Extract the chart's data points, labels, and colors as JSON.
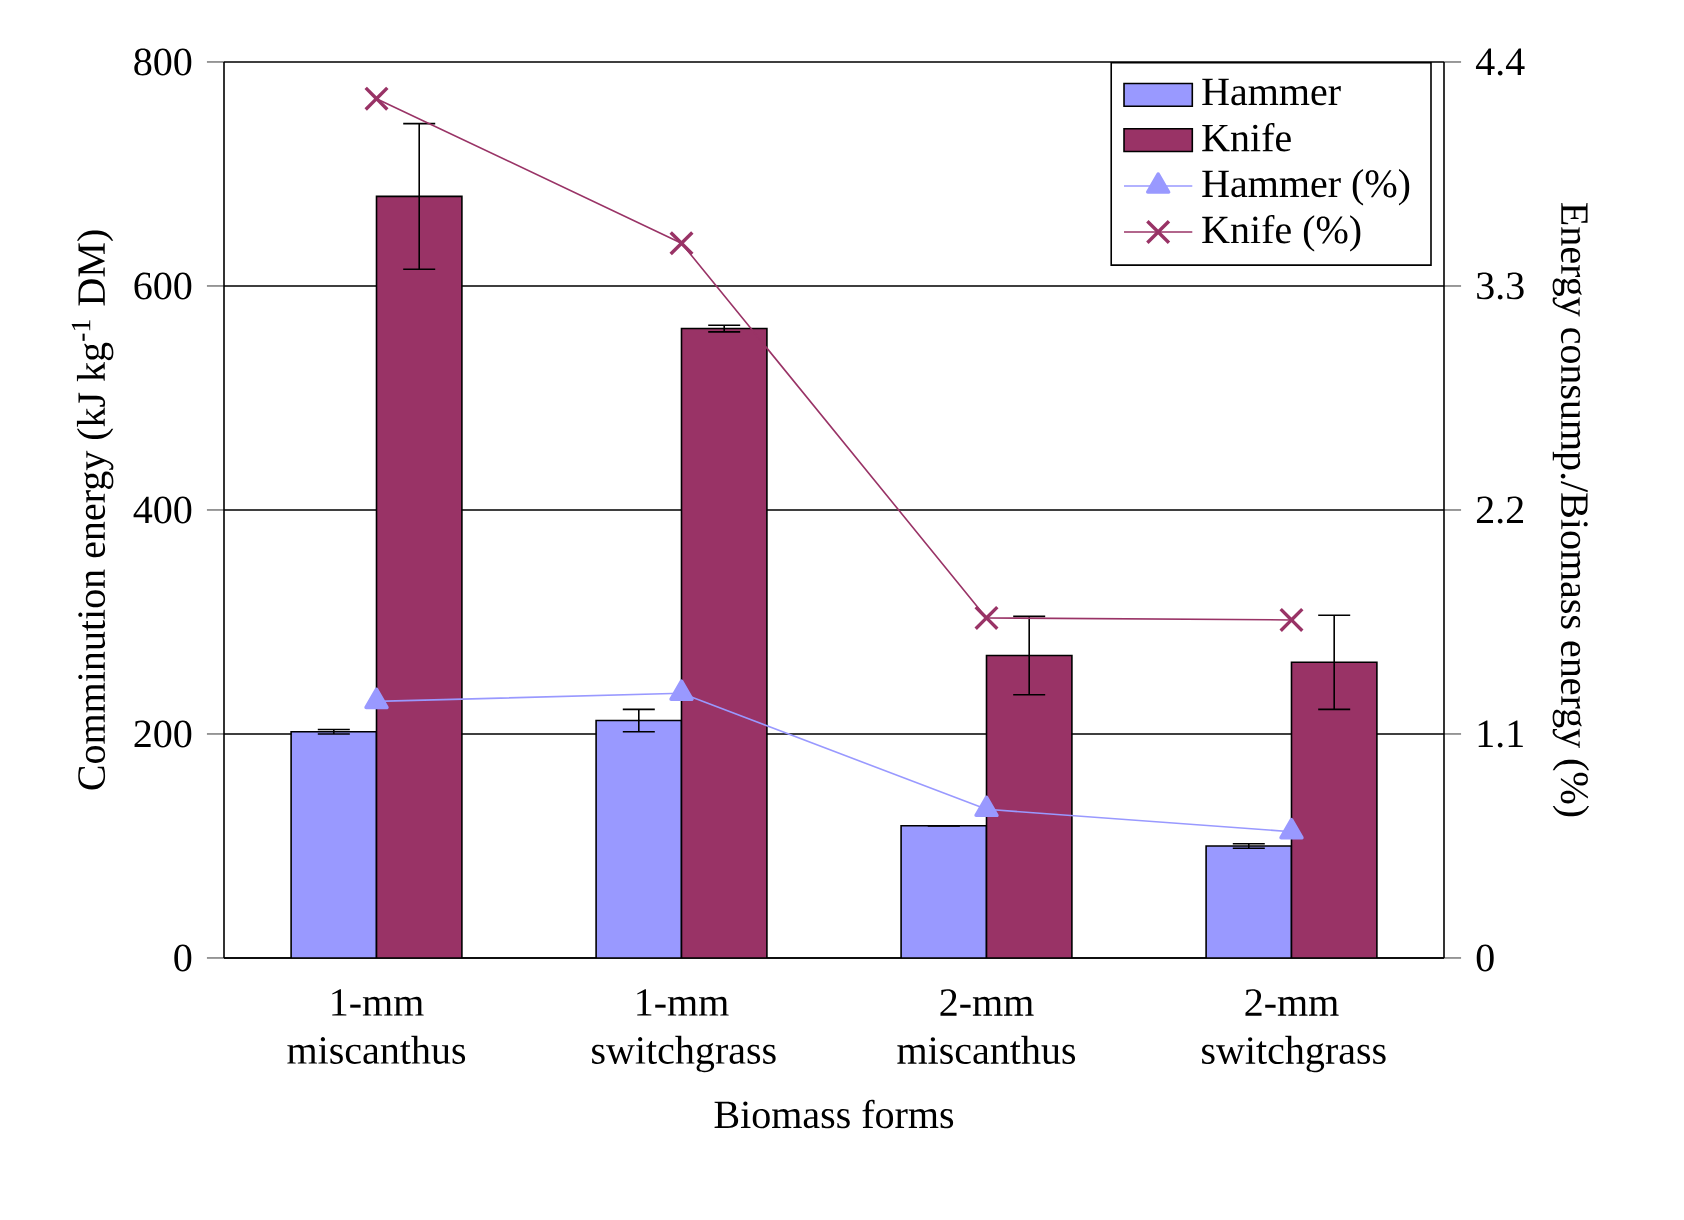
{
  "chart_data": {
    "type": "bar",
    "xlabel": "Biomass forms",
    "ylabel": "Comminution energy (kJ kg$^{-1}$ DM)",
    "y2label": "Energy consump./Biomass energy (%)",
    "categories": [
      "1-mm miscanthus",
      "1-mm switchgrass",
      "2-mm miscanthus",
      "2-mm switchgrass"
    ],
    "series": [
      {
        "name": "Hammer",
        "type": "bar",
        "color": "#9999ff",
        "values": [
          202,
          212,
          118,
          100
        ],
        "errors": [
          2,
          10,
          null,
          2
        ]
      },
      {
        "name": "Knife",
        "type": "bar",
        "color": "#993366",
        "values": [
          680,
          562,
          270,
          264
        ],
        "errors": [
          65,
          3,
          35,
          42
        ]
      },
      {
        "name": "Hammer (%)",
        "type": "line",
        "axis": "y2",
        "color": "#9999ff",
        "marker": "triangle",
        "values": [
          1.26,
          1.3,
          0.73,
          0.62
        ]
      },
      {
        "name": "Knife (%)",
        "type": "line",
        "axis": "y2",
        "color": "#993366",
        "marker": "cross",
        "values": [
          4.22,
          3.51,
          1.67,
          1.66
        ]
      }
    ],
    "ylim": [
      0,
      800
    ],
    "yticks": [
      0,
      200,
      400,
      600,
      800
    ],
    "y2lim": [
      0,
      4.4
    ],
    "y2ticks": [
      0,
      1.1,
      2.2,
      3.3,
      4.4
    ],
    "grid": "y",
    "legend": "top right"
  }
}
